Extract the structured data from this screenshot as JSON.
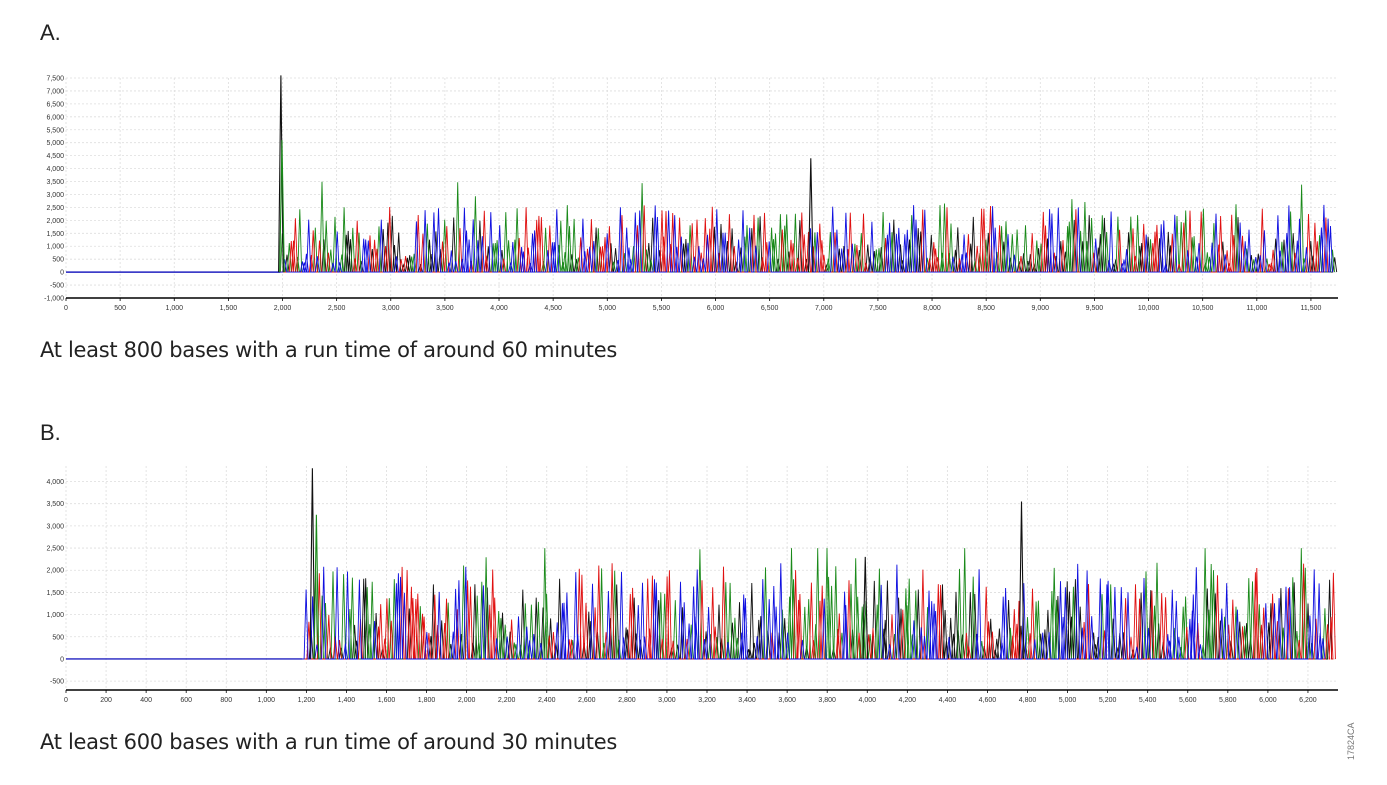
{
  "panels": {
    "a": {
      "label": "A.",
      "caption": "At least 800 bases with a run time of around 60 minutes"
    },
    "b": {
      "label": "B.",
      "caption": "At least 600 bases with a run time of around 30 minutes"
    }
  },
  "figure_code": "17824CA",
  "colors": {
    "green": "#1a8a1a",
    "blue": "#1010e0",
    "red": "#e01010",
    "black": "#111111",
    "grid": "#dddddd",
    "axis": "#000000",
    "baseline": "#2020c0"
  },
  "chart_data": [
    {
      "type": "line",
      "title": "",
      "xlabel": "",
      "ylabel": "",
      "xlim": [
        0,
        11750
      ],
      "ylim": [
        -1000,
        7500
      ],
      "x_ticks": [
        0,
        500,
        1000,
        1500,
        2000,
        2500,
        3000,
        3500,
        4000,
        4500,
        5000,
        5500,
        6000,
        6500,
        7000,
        7500,
        8000,
        8500,
        9000,
        9500,
        10000,
        10500,
        11000,
        11500
      ],
      "x_tick_labels": [
        "0",
        "500",
        "1,000",
        "1,500",
        "2,000",
        "2,500",
        "3,000",
        "3,500",
        "4,000",
        "4,500",
        "5,000",
        "5,500",
        "6,000",
        "6,500",
        "7,000",
        "7,500",
        "8,000",
        "8,500",
        "9,000",
        "9,500",
        "10,000",
        "10,500",
        "11,000",
        "11,500"
      ],
      "y_ticks": [
        -1000,
        -500,
        0,
        500,
        1000,
        1500,
        2000,
        2500,
        3000,
        3500,
        4000,
        4500,
        5000,
        5500,
        6000,
        6500,
        7000,
        7500
      ],
      "y_tick_labels": [
        "-1,000",
        "-500",
        "0",
        "500",
        "1,000",
        "1,500",
        "2,000",
        "2,500",
        "3,000",
        "3,500",
        "4,000",
        "4,500",
        "5,000",
        "5,500",
        "6,000",
        "6,500",
        "7,000",
        "7,500"
      ],
      "grid": true,
      "signal_onset": 1980,
      "flat_level": 0,
      "series_colors": [
        "black",
        "green",
        "red",
        "blue"
      ],
      "peak_events": [
        {
          "x": 1985,
          "y": 7600,
          "color": "black"
        },
        {
          "x": 1995,
          "y": 5100,
          "color": "green"
        },
        {
          "x": 6880,
          "y": 4400,
          "color": "black"
        }
      ],
      "typical_peak_range": [
        1000,
        2600
      ],
      "max_green_peak": 3500
    },
    {
      "type": "line",
      "title": "",
      "xlabel": "",
      "ylabel": "",
      "xlim": [
        0,
        6350
      ],
      "ylim": [
        -700,
        4350
      ],
      "x_ticks": [
        0,
        200,
        400,
        600,
        800,
        1000,
        1200,
        1400,
        1600,
        1800,
        2000,
        2200,
        2400,
        2600,
        2800,
        3000,
        3200,
        3400,
        3600,
        3800,
        4000,
        4200,
        4400,
        4600,
        4800,
        5000,
        5200,
        5400,
        5600,
        5800,
        6000,
        6200
      ],
      "x_tick_labels": [
        "0",
        "200",
        "400",
        "600",
        "800",
        "1,000",
        "1,200",
        "1,400",
        "1,600",
        "1,800",
        "2,000",
        "2,200",
        "2,400",
        "2,600",
        "2,800",
        "3,000",
        "3,200",
        "3,400",
        "3,600",
        "3,800",
        "4,000",
        "4,200",
        "4,400",
        "4,600",
        "4,800",
        "5,000",
        "5,200",
        "5,400",
        "5,600",
        "5,800",
        "6,000",
        "6,200"
      ],
      "y_ticks": [
        -500,
        0,
        500,
        1000,
        1500,
        2000,
        2500,
        3000,
        3500,
        4000
      ],
      "y_tick_labels": [
        "-500",
        "0",
        "500",
        "1,000",
        "1,500",
        "2,000",
        "2,500",
        "3,000",
        "3,500",
        "4,000"
      ],
      "grid": true,
      "signal_onset": 1180,
      "flat_level": 0,
      "series_colors": [
        "black",
        "green",
        "red",
        "blue"
      ],
      "peak_events": [
        {
          "x": 1230,
          "y": 4300,
          "color": "black"
        },
        {
          "x": 1250,
          "y": 3250,
          "color": "green"
        },
        {
          "x": 4770,
          "y": 3550,
          "color": "black"
        },
        {
          "x": 3990,
          "y": 2300,
          "color": "black"
        }
      ],
      "typical_peak_range": [
        800,
        2200
      ],
      "max_green_peak": 2500
    }
  ]
}
